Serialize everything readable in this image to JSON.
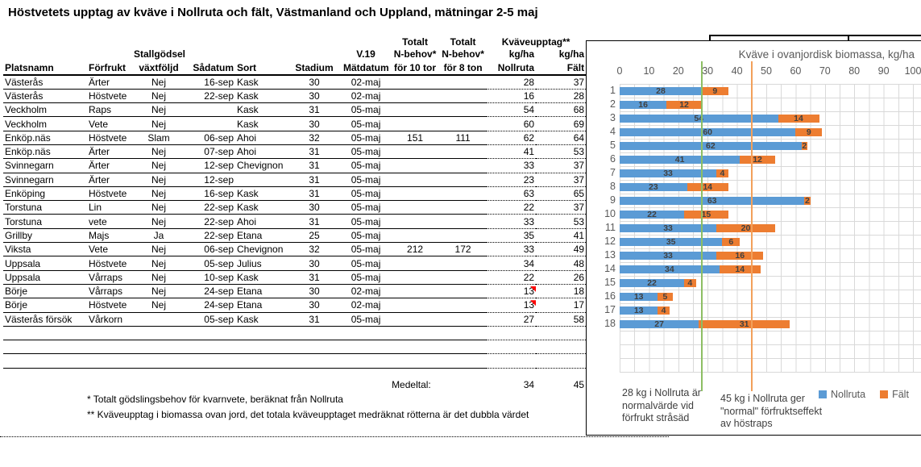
{
  "title": "Höstvetets upptag av kväve i Nollruta och fält, Västmanland och Uppland, mätningar 2-5 maj",
  "table": {
    "header": {
      "line1": {
        "totalt_10": "Totalt",
        "totalt_8": "Totalt",
        "kvaveupptag": "Kväveupptag**"
      },
      "line2": {
        "stallgodsel": "Stallgödsel",
        "v19": "V.19",
        "nbehov_10": "N-behov*",
        "nbehov_8": "N-behov*",
        "kgha_nollruta": "kg/ha",
        "kgha_falt": "kg/ha"
      },
      "line3": [
        "Platsnamn",
        "Förfrukt",
        "växtföljd",
        "Sådatum",
        "Sort",
        "Stadium",
        "Mätdatum",
        "för 10 tor",
        "för 8 ton",
        "Nollruta",
        "Fält"
      ]
    },
    "rows": [
      {
        "cells": [
          "Västerås",
          "Ärter",
          "Nej",
          "16-sep",
          "Kask",
          "30",
          "02-maj",
          "",
          "",
          "28",
          "37"
        ],
        "marker": false
      },
      {
        "cells": [
          "Västerås",
          "Höstvete",
          "Nej",
          "22-sep",
          "Kask",
          "30",
          "02-maj",
          "",
          "",
          "16",
          "28"
        ],
        "marker": false
      },
      {
        "cells": [
          "Veckholm",
          "Raps",
          "Nej",
          "",
          "Kask",
          "31",
          "05-maj",
          "",
          "",
          "54",
          "68"
        ],
        "marker": false
      },
      {
        "cells": [
          "Veckholm",
          "Vete",
          "Nej",
          "",
          "Kask",
          "30",
          "05-maj",
          "",
          "",
          "60",
          "69"
        ],
        "marker": false
      },
      {
        "cells": [
          "Enköp.näs",
          "Höstvete",
          "Slam",
          "06-sep",
          "Ahoi",
          "32",
          "05-maj",
          "151",
          "111",
          "62",
          "64"
        ],
        "marker": false
      },
      {
        "cells": [
          "Enköp.näs",
          "Ärter",
          "Nej",
          "07-sep",
          "Ahoi",
          "31",
          "05-maj",
          "",
          "",
          "41",
          "53"
        ],
        "marker": false
      },
      {
        "cells": [
          "Svinnegarn",
          "Ärter",
          "Nej",
          "12-sep",
          "Chevignon",
          "31",
          "05-maj",
          "",
          "",
          "33",
          "37"
        ],
        "marker": false
      },
      {
        "cells": [
          "Svinnegarn",
          "Ärter",
          "Nej",
          "12-sep",
          "",
          "31",
          "05-maj",
          "",
          "",
          "23",
          "37"
        ],
        "marker": false
      },
      {
        "cells": [
          "Enköping",
          "Höstvete",
          "Nej",
          "16-sep",
          "Kask",
          "31",
          "05-maj",
          "",
          "",
          "63",
          "65"
        ],
        "marker": false
      },
      {
        "cells": [
          "Torstuna",
          "Lin",
          "Nej",
          "22-sep",
          "Kask",
          "30",
          "05-maj",
          "",
          "",
          "22",
          "37"
        ],
        "marker": false
      },
      {
        "cells": [
          "Torstuna",
          "vete",
          "Nej",
          "22-sep",
          "Ahoi",
          "31",
          "05-maj",
          "",
          "",
          "33",
          "53"
        ],
        "marker": false
      },
      {
        "cells": [
          "Grillby",
          "Majs",
          "Ja",
          "22-sep",
          "Etana",
          "25",
          "05-maj",
          "",
          "",
          "35",
          "41"
        ],
        "marker": false
      },
      {
        "cells": [
          "Viksta",
          "Vete",
          "Nej",
          "06-sep",
          "Chevignon",
          "32",
          "05-maj",
          "212",
          "172",
          "33",
          "49"
        ],
        "marker": false
      },
      {
        "cells": [
          "Uppsala",
          "Höstvete",
          "Nej",
          "05-sep",
          "Julius",
          "30",
          "05-maj",
          "",
          "",
          "34",
          "48"
        ],
        "marker": false
      },
      {
        "cells": [
          "Uppsala",
          "Vårraps",
          "Nej",
          "10-sep",
          "Kask",
          "31",
          "05-maj",
          "",
          "",
          "22",
          "26"
        ],
        "marker": false
      },
      {
        "cells": [
          "Börje",
          "Vårraps",
          "Nej",
          "24-sep",
          "Etana",
          "30",
          "02-maj",
          "",
          "",
          "13",
          "18"
        ],
        "marker": true
      },
      {
        "cells": [
          "Börje",
          "Höstvete",
          "Nej",
          "24-sep",
          "Etana",
          "30",
          "02-maj",
          "",
          "",
          "13",
          "17"
        ],
        "marker": true
      },
      {
        "cells": [
          "Västerås försök",
          "Vårkorn",
          "",
          "05-sep",
          "Kask",
          "31",
          "05-maj",
          "",
          "",
          "27",
          "58"
        ],
        "marker": false
      }
    ],
    "empty_row_count": 3,
    "medeltal": {
      "label": "Medeltal:",
      "nollruta": "34",
      "falt": "45"
    },
    "footnotes": [
      "* Totalt gödslingsbehov för kvarnvete, beräknat från Nollruta",
      "** Kväveupptag i biomassa ovan jord, det totala kväveupptaget medräknat rötterna är det dubbla värdet"
    ],
    "marker_color": "#FF0000"
  },
  "chart_data": {
    "type": "bar",
    "orientation": "horizontal",
    "stacked": true,
    "title": "Kväve i ovanjordisk biomassa, kg/ha",
    "categories": [
      "1",
      "2",
      "3",
      "4",
      "5",
      "6",
      "7",
      "8",
      "9",
      "10",
      "11",
      "12",
      "13",
      "14",
      "15",
      "16",
      "17",
      "18"
    ],
    "series": [
      {
        "name": "Nollruta",
        "color": "#5B9BD5",
        "values": [
          28,
          16,
          54,
          60,
          62,
          41,
          33,
          23,
          63,
          22,
          33,
          35,
          33,
          34,
          22,
          13,
          13,
          27
        ]
      },
      {
        "name": "Fält",
        "color": "#ED7D31",
        "values": [
          9,
          12,
          14,
          9,
          2,
          12,
          4,
          14,
          2,
          15,
          20,
          6,
          16,
          14,
          4,
          5,
          4,
          31
        ]
      }
    ],
    "x_ticks": [
      0,
      10,
      20,
      30,
      40,
      50,
      60,
      70,
      80,
      90,
      100
    ],
    "xlim": [
      0,
      105
    ],
    "gridline_step": 5,
    "grid": true,
    "legend_position": "bottom",
    "ref_lines": [
      {
        "value": 28,
        "color": "#8CBE64",
        "label": "28 kg i Nollruta är normalvärde vid förfrukt stråsäd"
      },
      {
        "value": 45,
        "color": "#F2A05A",
        "label": "45 kg i Nollruta ger \"normal\" förfruktseffekt av höstraps"
      }
    ]
  }
}
